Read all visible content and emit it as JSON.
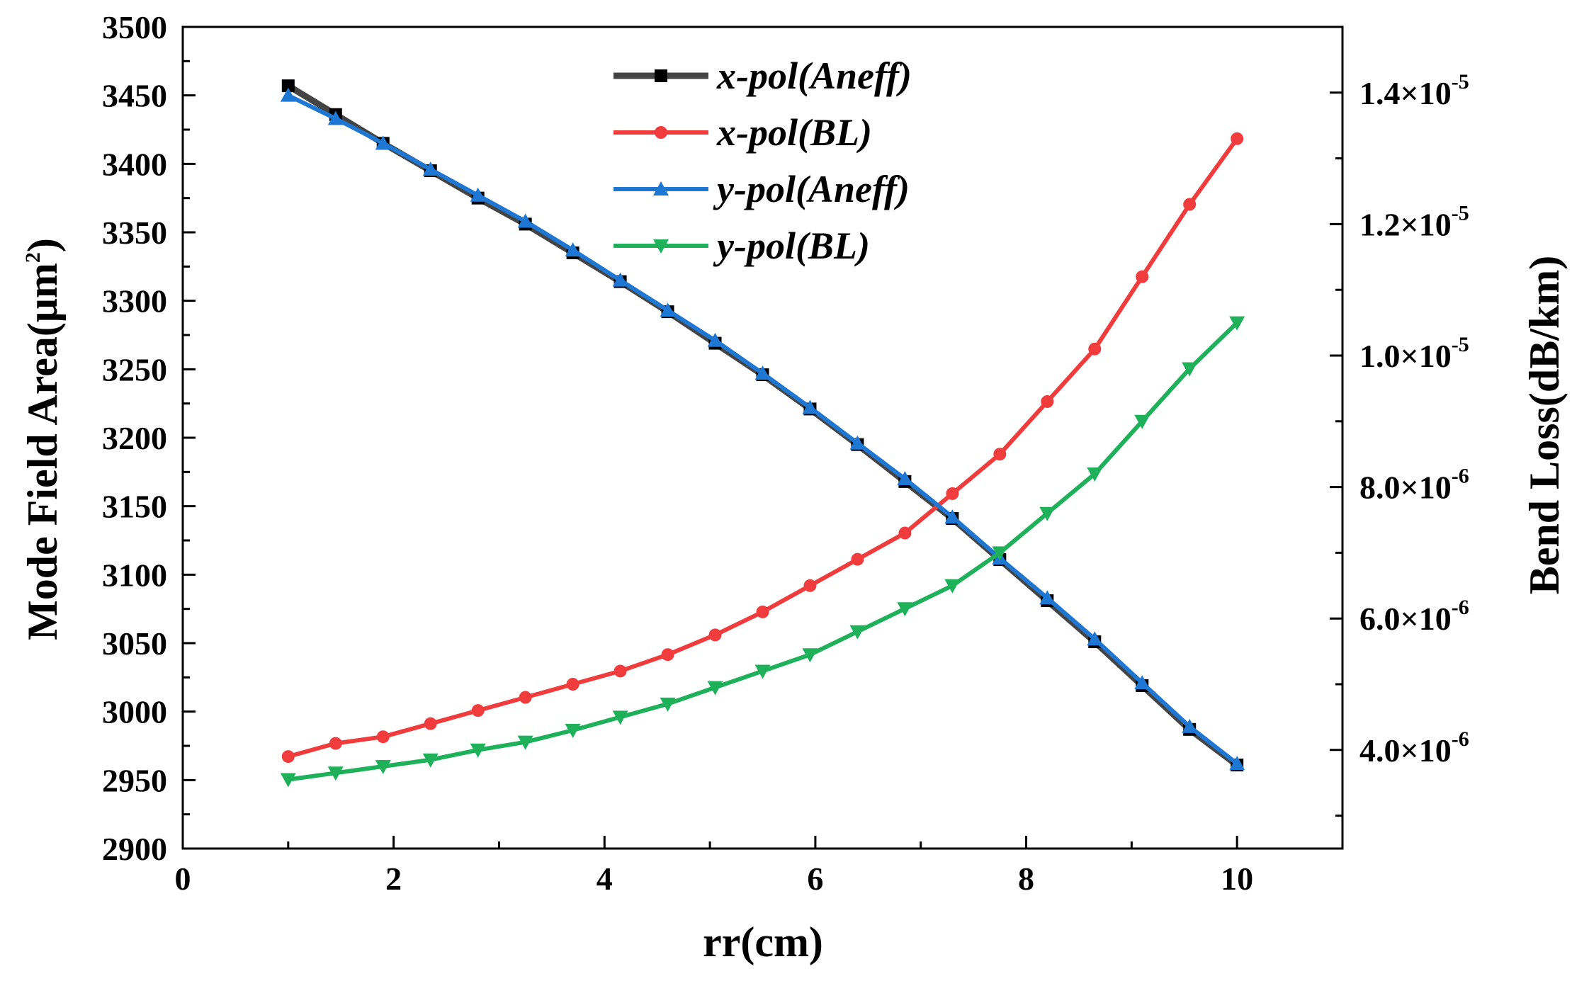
{
  "chart_data": {
    "type": "line",
    "title": "",
    "xlabel": "rr(cm)",
    "ylabel_left": "Mode Field Area(μm",
    "ylabel_left_sup": "2",
    "ylabel_left_close": ")",
    "ylabel_right": "Bend Loss(dB/km)",
    "xlim": [
      0,
      11
    ],
    "ylim_left": [
      2900,
      3500
    ],
    "ylim_right": [
      2.5e-06,
      1.5e-05
    ],
    "x_ticks": [
      0,
      2,
      4,
      6,
      8,
      10
    ],
    "x_tick_labels": [
      "0",
      "2",
      "4",
      "6",
      "8",
      "10"
    ],
    "y_left_ticks": [
      2900,
      2950,
      3000,
      3050,
      3100,
      3150,
      3200,
      3250,
      3300,
      3350,
      3400,
      3450,
      3500
    ],
    "y_left_tick_labels": [
      "2900",
      "2950",
      "3000",
      "3050",
      "3100",
      "3150",
      "3200",
      "3250",
      "3300",
      "3350",
      "3400",
      "3450",
      "3500"
    ],
    "y_right_ticks": [
      4e-06,
      6e-06,
      8e-06,
      1e-05,
      1.2e-05,
      1.4e-05
    ],
    "y_right_tick_labels": [
      {
        "mantissa": "4.0×10",
        "exp": "-6"
      },
      {
        "mantissa": "6.0×10",
        "exp": "-6"
      },
      {
        "mantissa": "8.0×10",
        "exp": "-6"
      },
      {
        "mantissa": "1.0×10",
        "exp": "-5"
      },
      {
        "mantissa": "1.2×10",
        "exp": "-5"
      },
      {
        "mantissa": "1.4×10",
        "exp": "-5"
      }
    ],
    "x": [
      1.0,
      1.45,
      1.9,
      2.35,
      2.8,
      3.25,
      3.7,
      4.15,
      4.6,
      5.05,
      5.5,
      5.95,
      6.4,
      6.85,
      7.3,
      7.75,
      8.2,
      8.65,
      9.1,
      9.55,
      10.0
    ],
    "series": [
      {
        "name": "x-pol(Aneff)",
        "axis": "left",
        "color": "#444444",
        "marker": "square",
        "values": [
          3457,
          3436,
          3415,
          3395,
          3375,
          3356,
          3335,
          3314,
          3292,
          3269,
          3246,
          3221,
          3195,
          3168,
          3141,
          3111,
          3081,
          3051,
          3019,
          2987,
          2961
        ]
      },
      {
        "name": "x-pol(BL)",
        "axis": "right",
        "color": "#f03c3c",
        "marker": "circle",
        "values": [
          3.9e-06,
          4.1e-06,
          4.2e-06,
          4.4e-06,
          4.6e-06,
          4.8e-06,
          5e-06,
          5.2e-06,
          5.45e-06,
          5.75e-06,
          6.1e-06,
          6.5e-06,
          6.9e-06,
          7.3e-06,
          7.9e-06,
          8.5e-06,
          9.3e-06,
          1.01e-05,
          1.12e-05,
          1.23e-05,
          1.33e-05
        ]
      },
      {
        "name": "y-pol(Aneff)",
        "axis": "left",
        "color": "#1f77d4",
        "marker": "triangle-up",
        "values": [
          3450,
          3433,
          3415,
          3396,
          3377,
          3358,
          3337,
          3315,
          3293,
          3271,
          3247,
          3222,
          3196,
          3170,
          3142,
          3112,
          3083,
          3053,
          3021,
          2989,
          2962
        ]
      },
      {
        "name": "y-pol(BL)",
        "axis": "right",
        "color": "#1fb15a",
        "marker": "triangle-down",
        "values": [
          3.55e-06,
          3.65e-06,
          3.75e-06,
          3.85e-06,
          4e-06,
          4.12e-06,
          4.3e-06,
          4.5e-06,
          4.7e-06,
          4.95e-06,
          5.2e-06,
          5.45e-06,
          5.8e-06,
          6.15e-06,
          6.5e-06,
          7e-06,
          7.6e-06,
          8.2e-06,
          9e-06,
          9.8e-06,
          1.05e-05
        ]
      }
    ],
    "legend_position": "top-center"
  }
}
